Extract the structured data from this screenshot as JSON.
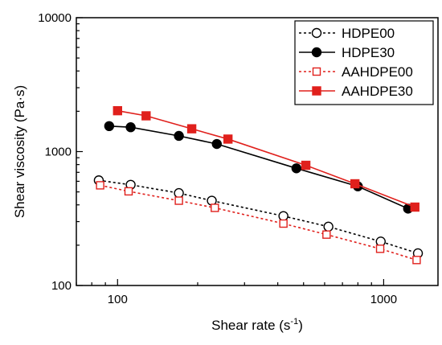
{
  "chart_data": {
    "type": "line",
    "xlabel": "Shear rate (s",
    "xlabel_sup": "-1",
    "xlabel_end": ")",
    "ylabel": "Shear viscosity (Pa·s)",
    "xscale": "log",
    "yscale": "log",
    "xlim": [
      70,
      1600
    ],
    "ylim": [
      100,
      10000
    ],
    "x_ticks": [
      100,
      1000
    ],
    "x_tick_labels": [
      "100",
      "1000"
    ],
    "y_ticks": [
      100,
      1000,
      10000
    ],
    "y_tick_labels": [
      "100",
      "1000",
      "10000"
    ],
    "grid": false,
    "legend_position": "top-right",
    "series": [
      {
        "name": "HDPE00",
        "color": "#000000",
        "line": "dotted",
        "marker": "circle-open",
        "x": [
          85,
          112,
          170,
          226,
          420,
          620,
          975,
          1345
        ],
        "y": [
          610,
          565,
          490,
          430,
          330,
          275,
          213,
          174
        ]
      },
      {
        "name": "HDPE30",
        "color": "#000000",
        "line": "solid",
        "marker": "circle-filled",
        "x": [
          93,
          112,
          170,
          236,
          470,
          800,
          1235
        ],
        "y": [
          1550,
          1520,
          1310,
          1140,
          750,
          550,
          375
        ]
      },
      {
        "name": "AAHDPE00",
        "color": "#e0201c",
        "line": "dotted",
        "marker": "square-open",
        "x": [
          86,
          110,
          170,
          232,
          420,
          610,
          970,
          1330
        ],
        "y": [
          560,
          505,
          430,
          380,
          290,
          240,
          188,
          155
        ]
      },
      {
        "name": "AAHDPE30",
        "color": "#e0201c",
        "line": "solid",
        "marker": "square-filled",
        "x": [
          100,
          128,
          190,
          260,
          510,
          780,
          1310
        ],
        "y": [
          2020,
          1850,
          1480,
          1240,
          790,
          575,
          385
        ]
      }
    ]
  }
}
